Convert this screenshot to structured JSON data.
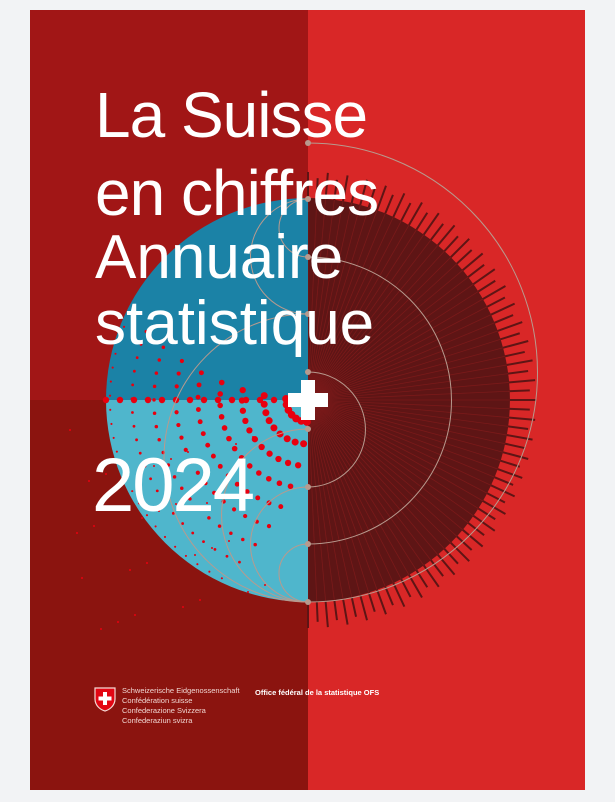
{
  "cover": {
    "title_line1": "La Suisse",
    "title_line2": "en chiffres",
    "subtitle_line1": "Annuaire",
    "subtitle_line2": "statistique",
    "year": "2024"
  },
  "footer": {
    "confederation_names": [
      "Schweizerische Eidgenossenschaft",
      "Confédération suisse",
      "Confederazione Svizzera",
      "Confederaziun svizra"
    ],
    "office": "Office fédéral de la statistique OFS"
  },
  "colors": {
    "left_top": "#a11616",
    "left_bottom": "#8b140f",
    "right": "#d92727",
    "dark_disc": "#5e1515",
    "blue_dark": "#1b82a6",
    "blue_light": "#4fb6cc",
    "dots": "#e8000f",
    "lines": "#b89a8e"
  },
  "icons": {
    "emblem": "swiss-shield-icon",
    "cross": "swiss-cross-icon"
  }
}
